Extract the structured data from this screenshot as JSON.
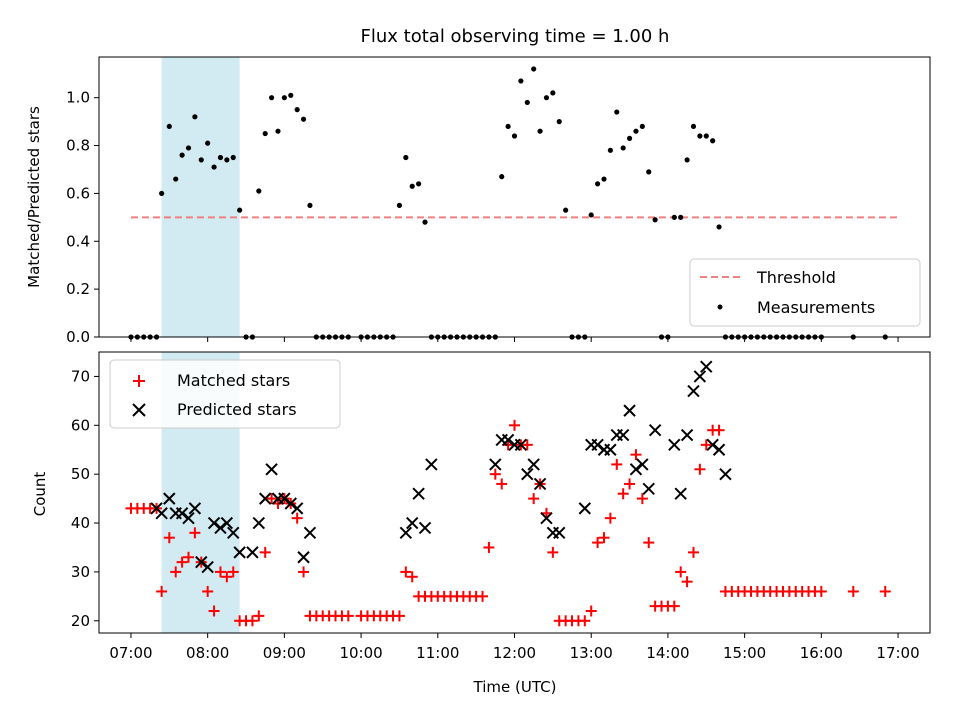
{
  "chart_data": [
    {
      "type": "scatter",
      "title": "Flux total observing time = 1.00 h",
      "ylabel": "Matched/Predicted stars",
      "xlabel": "",
      "ylim": [
        0,
        1.17
      ],
      "yticks": [
        "0.0",
        "0.2",
        "0.4",
        "0.6",
        "0.8",
        "1.0"
      ],
      "shaded_span": [
        "07:24",
        "08:25"
      ],
      "shade_color": "#add8e6",
      "threshold": {
        "name": "Threshold",
        "value": 0.5,
        "x_range": [
          "07:00",
          "17:00"
        ],
        "color": "#f08080"
      },
      "legend": {
        "position": "lower right",
        "entries": [
          "Threshold",
          "Measurements"
        ]
      },
      "series": [
        {
          "name": "Measurements",
          "color": "#000000",
          "x": [
            "07:00",
            "07:05",
            "07:10",
            "07:15",
            "07:20",
            "07:24",
            "07:30",
            "07:35",
            "07:40",
            "07:45",
            "07:50",
            "07:55",
            "08:00",
            "08:05",
            "08:10",
            "08:15",
            "08:20",
            "08:25",
            "08:30",
            "08:35",
            "08:40",
            "08:45",
            "08:50",
            "08:55",
            "09:00",
            "09:05",
            "09:10",
            "09:15",
            "09:20",
            "09:25",
            "09:30",
            "09:35",
            "09:40",
            "09:45",
            "09:50",
            "10:00",
            "10:05",
            "10:10",
            "10:15",
            "10:20",
            "10:25",
            "10:30",
            "10:35",
            "10:40",
            "10:45",
            "10:50",
            "10:55",
            "11:00",
            "11:05",
            "11:10",
            "11:15",
            "11:20",
            "11:25",
            "11:30",
            "11:35",
            "11:40",
            "11:45",
            "11:50",
            "11:55",
            "12:00",
            "12:05",
            "12:10",
            "12:15",
            "12:20",
            "12:25",
            "12:30",
            "12:35",
            "12:40",
            "12:45",
            "12:50",
            "12:55",
            "13:00",
            "13:05",
            "13:10",
            "13:15",
            "13:20",
            "13:25",
            "13:30",
            "13:35",
            "13:40",
            "13:45",
            "13:50",
            "13:55",
            "14:00",
            "14:05",
            "14:10",
            "14:15",
            "14:20",
            "14:25",
            "14:30",
            "14:35",
            "14:40",
            "14:45",
            "14:50",
            "14:55",
            "15:00",
            "15:05",
            "15:10",
            "15:15",
            "15:20",
            "15:25",
            "15:30",
            "15:35",
            "15:40",
            "15:45",
            "15:50",
            "15:55",
            "16:00",
            "16:25",
            "16:50"
          ],
          "y": [
            0,
            0,
            0,
            0,
            0,
            0.6,
            0.88,
            0.66,
            0.76,
            0.79,
            0.92,
            0.74,
            0.81,
            0.71,
            0.75,
            0.74,
            0.75,
            0.53,
            0,
            0,
            0.61,
            0.85,
            1.0,
            0.86,
            1.0,
            1.01,
            0.95,
            0.91,
            0.55,
            0,
            0,
            0,
            0,
            0,
            0,
            0,
            0,
            0,
            0,
            0,
            0,
            0.55,
            0.75,
            0.63,
            0.64,
            0.48,
            0,
            0,
            0,
            0,
            0,
            0,
            0,
            0,
            0,
            0,
            0,
            0.67,
            0.88,
            0.84,
            1.07,
            0.98,
            1.12,
            0.86,
            1.0,
            1.02,
            0.9,
            0.53,
            0,
            0,
            0,
            0.51,
            0.64,
            0.66,
            0.78,
            0.94,
            0.79,
            0.83,
            0.86,
            0.88,
            0.69,
            0.49,
            0,
            0,
            0.5,
            0.5,
            0.74,
            0.88,
            0.84,
            0.84,
            0.82,
            0.46,
            0,
            0,
            0,
            0,
            0,
            0,
            0,
            0,
            0,
            0,
            0,
            0,
            0,
            0,
            0,
            0,
            0,
            0
          ]
        }
      ]
    },
    {
      "type": "scatter",
      "title": "",
      "xlabel": "Time (UTC)",
      "ylabel": "Count",
      "ylim": [
        17.5,
        75
      ],
      "yticks": [
        "20",
        "30",
        "40",
        "50",
        "60",
        "70"
      ],
      "xticks": [
        "07:00",
        "08:00",
        "09:00",
        "10:00",
        "11:00",
        "12:00",
        "13:00",
        "14:00",
        "15:00",
        "16:00",
        "17:00"
      ],
      "xlim": [
        "06:35",
        "17:25"
      ],
      "shaded_span": [
        "07:24",
        "08:25"
      ],
      "legend": {
        "position": "upper left",
        "entries": [
          "Matched stars",
          "Predicted stars"
        ]
      },
      "series": [
        {
          "name": "Matched stars",
          "marker": "+",
          "color": "#ff0000",
          "x": [
            "07:00",
            "07:05",
            "07:10",
            "07:15",
            "07:20",
            "07:24",
            "07:30",
            "07:35",
            "07:40",
            "07:45",
            "07:50",
            "07:55",
            "08:00",
            "08:05",
            "08:10",
            "08:15",
            "08:20",
            "08:25",
            "08:30",
            "08:35",
            "08:40",
            "08:45",
            "08:50",
            "08:55",
            "09:00",
            "09:05",
            "09:10",
            "09:15",
            "09:20",
            "09:25",
            "09:30",
            "09:35",
            "09:40",
            "09:45",
            "09:50",
            "10:00",
            "10:05",
            "10:10",
            "10:15",
            "10:20",
            "10:25",
            "10:30",
            "10:35",
            "10:40",
            "10:45",
            "10:50",
            "10:55",
            "11:00",
            "11:05",
            "11:10",
            "11:15",
            "11:20",
            "11:25",
            "11:30",
            "11:35",
            "11:40",
            "11:45",
            "11:50",
            "11:55",
            "12:00",
            "12:05",
            "12:10",
            "12:15",
            "12:20",
            "12:25",
            "12:30",
            "12:35",
            "12:40",
            "12:45",
            "12:50",
            "12:55",
            "13:00",
            "13:05",
            "13:10",
            "13:15",
            "13:20",
            "13:25",
            "13:30",
            "13:35",
            "13:40",
            "13:45",
            "13:50",
            "13:55",
            "14:00",
            "14:05",
            "14:10",
            "14:15",
            "14:20",
            "14:25",
            "14:30",
            "14:35",
            "14:40",
            "14:45",
            "14:50",
            "14:55",
            "15:00",
            "15:05",
            "15:10",
            "15:15",
            "15:20",
            "15:25",
            "15:30",
            "15:35",
            "15:40",
            "15:45",
            "15:50",
            "15:55",
            "16:00",
            "16:25",
            "16:50"
          ],
          "y": [
            43,
            43,
            43,
            43,
            43,
            26,
            37,
            30,
            32,
            33,
            38,
            32,
            26,
            22,
            30,
            29,
            30,
            20,
            20,
            20,
            21,
            34,
            45,
            44,
            45,
            44,
            41,
            30,
            21,
            21,
            21,
            21,
            21,
            21,
            21,
            21,
            21,
            21,
            21,
            21,
            21,
            21,
            30,
            29,
            25,
            25,
            25,
            25,
            25,
            25,
            25,
            25,
            25,
            25,
            25,
            35,
            50,
            48,
            56,
            60,
            56,
            56,
            45,
            48,
            42,
            34,
            20,
            20,
            20,
            20,
            20,
            22,
            36,
            37,
            41,
            52,
            46,
            48,
            54,
            45,
            36,
            23,
            23,
            23,
            23,
            30,
            28,
            34,
            51,
            56,
            59,
            59,
            26,
            26,
            26,
            26,
            26,
            26,
            26,
            26,
            26,
            26,
            26,
            26,
            26,
            26,
            26,
            26,
            26,
            26
          ]
        },
        {
          "name": "Predicted stars",
          "marker": "x",
          "color": "#000000",
          "x": [
            "07:20",
            "07:24",
            "07:30",
            "07:35",
            "07:40",
            "07:45",
            "07:50",
            "07:55",
            "08:00",
            "08:05",
            "08:10",
            "08:15",
            "08:20",
            "08:25",
            "08:35",
            "08:40",
            "08:45",
            "08:50",
            "08:55",
            "09:00",
            "09:05",
            "09:10",
            "09:15",
            "09:20",
            "10:35",
            "10:40",
            "10:45",
            "10:50",
            "10:55",
            "11:45",
            "11:50",
            "11:55",
            "12:00",
            "12:05",
            "12:10",
            "12:15",
            "12:20",
            "12:25",
            "12:30",
            "12:35",
            "12:55",
            "13:00",
            "13:05",
            "13:10",
            "13:15",
            "13:20",
            "13:25",
            "13:30",
            "13:35",
            "13:40",
            "13:45",
            "13:50",
            "14:05",
            "14:10",
            "14:15",
            "14:20",
            "14:25",
            "14:30",
            "14:35",
            "14:40",
            "14:45"
          ],
          "y": [
            43,
            42,
            45,
            42,
            42,
            41,
            43,
            32,
            31,
            40,
            39,
            40,
            38,
            34,
            34,
            40,
            45,
            51,
            45,
            45,
            44,
            43,
            33,
            38,
            38,
            40,
            46,
            39,
            52,
            52,
            57,
            57,
            56,
            56,
            50,
            52,
            48,
            41,
            38,
            38,
            43,
            56,
            56,
            55,
            55,
            58,
            58,
            63,
            51,
            52,
            47,
            59,
            56,
            46,
            58,
            67,
            70,
            72,
            56,
            55,
            50
          ]
        }
      ]
    }
  ]
}
